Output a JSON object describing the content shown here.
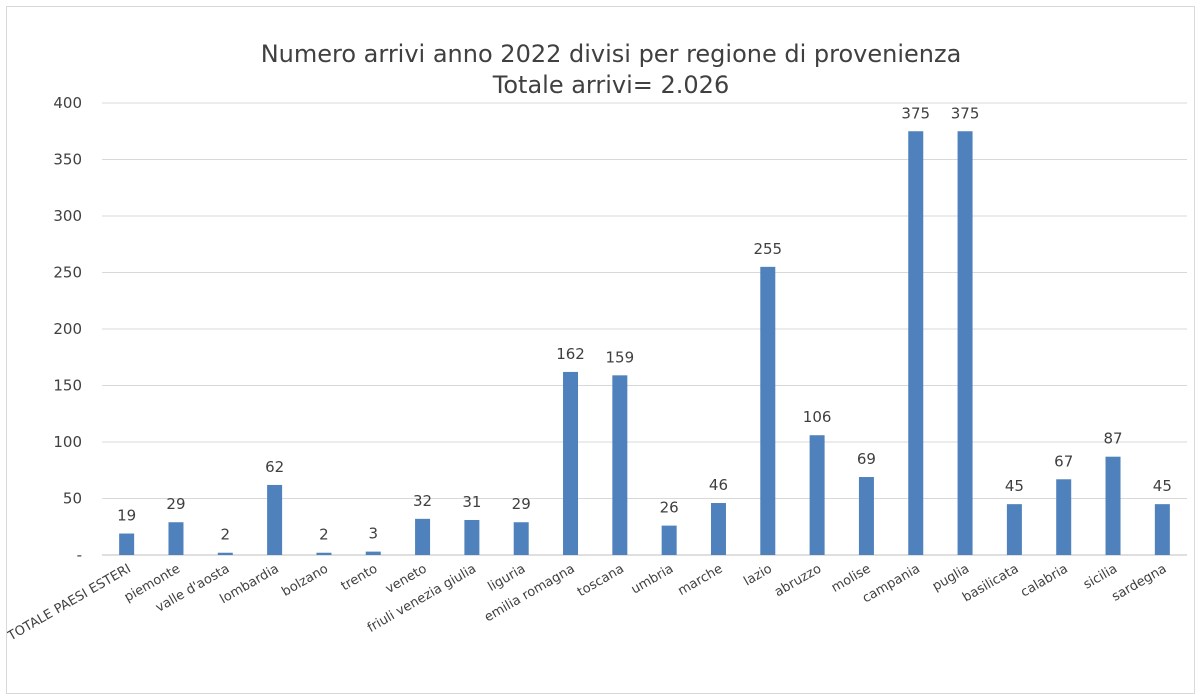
{
  "chart_data": {
    "type": "bar",
    "title": "Numero  arrivi anno 2022 divisi per regione di provenienza",
    "subtitle": "Totale arrivi= 2.026",
    "xlabel": "",
    "ylabel": "",
    "ylim": [
      0,
      400
    ],
    "yticks": [
      0,
      50,
      100,
      150,
      200,
      250,
      300,
      350,
      400
    ],
    "ytick_labels": [
      "-",
      "50",
      "100",
      "150",
      "200",
      "250",
      "300",
      "350",
      "400"
    ],
    "grid": true,
    "legend": "none",
    "bar_color": "#4f81bd",
    "categories": [
      "TOTALE PAESI ESTERI",
      "piemonte",
      "valle d'aosta",
      "lombardia",
      "bolzano",
      "trento",
      "veneto",
      "friuli venezia giulia",
      "liguria",
      "emilia romagna",
      "toscana",
      "umbria",
      "marche",
      "lazio",
      "abruzzo",
      "molise",
      "campania",
      "puglia",
      "basilicata",
      "calabria",
      "sicilia",
      "sardegna"
    ],
    "values": [
      19,
      29,
      2,
      62,
      2,
      3,
      32,
      31,
      29,
      162,
      159,
      26,
      46,
      255,
      106,
      69,
      375,
      375,
      45,
      67,
      87,
      45
    ]
  }
}
